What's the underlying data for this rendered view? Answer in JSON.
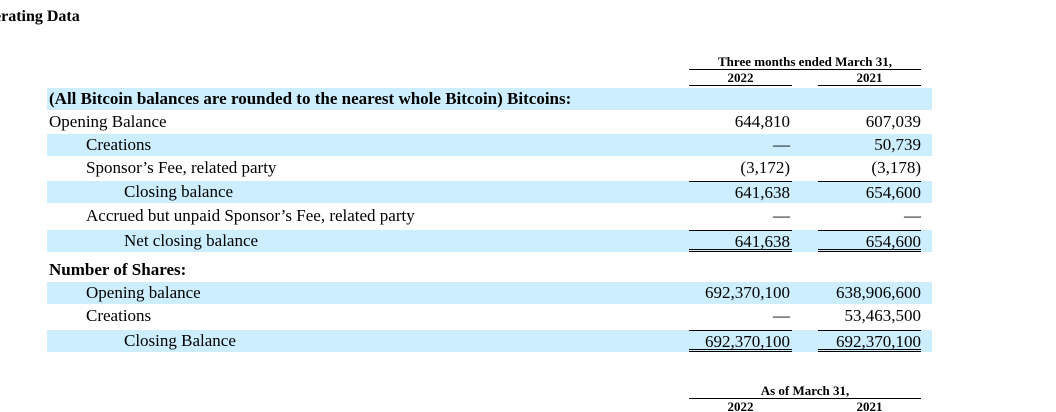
{
  "section_title": "erating Data",
  "header": {
    "period": "Three months ended March 31,",
    "year_a": "2022",
    "year_b": "2021"
  },
  "bitcoins": {
    "heading": "(All Bitcoin balances are rounded to the nearest whole Bitcoin) Bitcoins:",
    "rows": [
      {
        "label": "Opening Balance",
        "a": "644,810",
        "b": "607,039"
      },
      {
        "label": "Creations",
        "a": "—",
        "b": "50,739"
      },
      {
        "label": "Sponsor’s Fee, related party",
        "a": "(3,172)",
        "b": "(3,178)"
      },
      {
        "label": "Closing balance",
        "a": "641,638",
        "b": "654,600"
      },
      {
        "label": "Accrued but unpaid Sponsor’s Fee, related party",
        "a": "—",
        "b": "—"
      },
      {
        "label": "Net closing balance",
        "a": "641,638",
        "b": "654,600"
      }
    ]
  },
  "shares": {
    "heading": "Number of Shares:",
    "rows": [
      {
        "label": "Opening balance",
        "a": "692,370,100",
        "b": "638,906,600"
      },
      {
        "label": "Creations",
        "a": "—",
        "b": "53,463,500"
      },
      {
        "label": "Closing Balance",
        "a": "692,370,100",
        "b": "692,370,100"
      }
    ]
  },
  "header2": {
    "period": "As of March 31,",
    "year_a": "2022",
    "year_b": "2021"
  }
}
